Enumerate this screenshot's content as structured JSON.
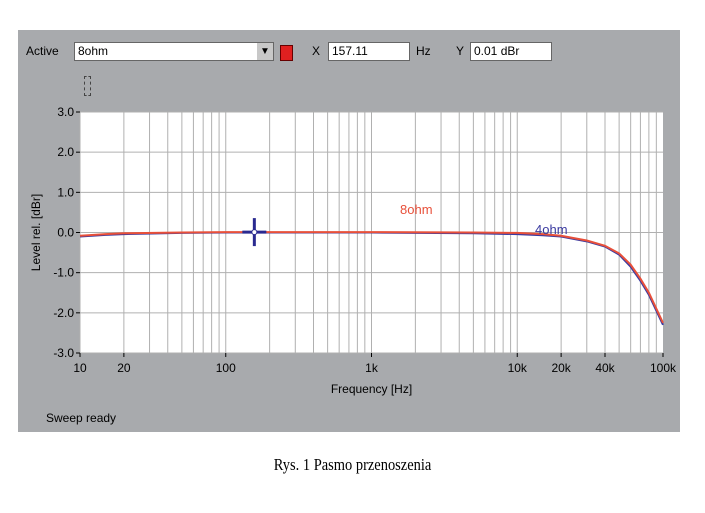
{
  "toolbar": {
    "active_label": "Active",
    "active_value": "8ohm",
    "active_color": "#e02020",
    "x_label": "X",
    "x_value": "157.11",
    "x_unit": "Hz",
    "y_label": "Y",
    "y_value": "0.01 dBr"
  },
  "status": "Sweep ready",
  "caption": "Rys. 1 Pasmo przenoszenia",
  "chart_data": {
    "type": "line",
    "xlabel": "Frequency [Hz]",
    "ylabel": "Level rel. [dBr]",
    "xscale": "log",
    "xlim": [
      10,
      100000
    ],
    "ylim": [
      -3,
      3
    ],
    "grid": true,
    "xticks": [
      {
        "v": 10,
        "t": "10"
      },
      {
        "v": 20,
        "t": "20"
      },
      {
        "v": 100,
        "t": "100"
      },
      {
        "v": 1000,
        "t": "1k"
      },
      {
        "v": 10000,
        "t": "10k"
      },
      {
        "v": 20000,
        "t": "20k"
      },
      {
        "v": 40000,
        "t": "40k"
      },
      {
        "v": 100000,
        "t": "100k"
      }
    ],
    "yticks": [
      {
        "v": 3,
        "t": "3.0"
      },
      {
        "v": 2,
        "t": "2.0"
      },
      {
        "v": 1,
        "t": "1.0"
      },
      {
        "v": 0,
        "t": "0.0"
      },
      {
        "v": -1,
        "t": "-1.0"
      },
      {
        "v": -2,
        "t": "-2.0"
      },
      {
        "v": -3,
        "t": "-3.0"
      }
    ],
    "cursor": {
      "x": 157.11,
      "y": 0.01
    },
    "series": [
      {
        "name": "4ohm",
        "color": "#3a3aa0",
        "x": [
          10,
          15,
          20,
          50,
          100,
          1000,
          5000,
          10000,
          15000,
          20000,
          30000,
          40000,
          50000,
          60000,
          70000,
          80000,
          100000
        ],
        "y": [
          -0.1,
          -0.06,
          -0.04,
          -0.01,
          0,
          0,
          -0.02,
          -0.04,
          -0.07,
          -0.1,
          -0.22,
          -0.35,
          -0.55,
          -0.85,
          -1.2,
          -1.55,
          -2.3
        ]
      },
      {
        "name": "8ohm",
        "color": "#e8503a",
        "x": [
          10,
          15,
          20,
          50,
          100,
          1000,
          5000,
          10000,
          15000,
          20000,
          30000,
          40000,
          50000,
          60000,
          70000,
          80000,
          100000
        ],
        "y": [
          -0.08,
          -0.04,
          -0.02,
          0,
          0.01,
          0.01,
          0,
          -0.01,
          -0.04,
          -0.08,
          -0.2,
          -0.33,
          -0.52,
          -0.8,
          -1.15,
          -1.5,
          -2.25
        ]
      }
    ]
  }
}
